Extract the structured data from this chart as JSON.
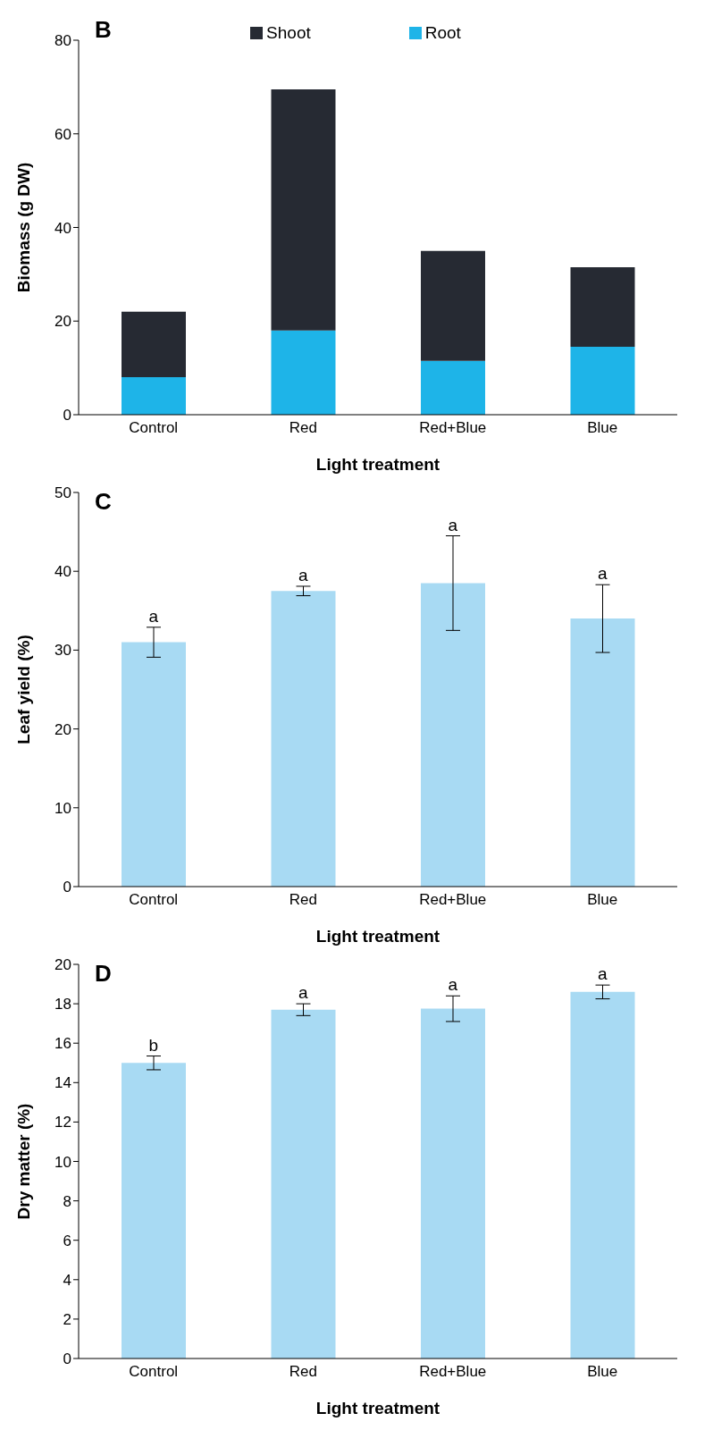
{
  "chart_data": [
    {
      "type": "bar",
      "title": "B",
      "xlabel": "Light treatment",
      "ylabel": "Biomass (g DW)",
      "categories": [
        "Control",
        "Red",
        "Red+Blue",
        "Blue"
      ],
      "stacked": true,
      "legend": "top",
      "ylim": [
        0,
        80
      ],
      "yticks": [
        0,
        20,
        40,
        60,
        80
      ],
      "series": [
        {
          "name": "Root",
          "color": "#1eb4e8",
          "values": [
            8,
            18,
            11.5,
            14.5
          ]
        },
        {
          "name": "Shoot",
          "color": "#262a33",
          "values": [
            14,
            51.5,
            23.5,
            17
          ]
        }
      ]
    },
    {
      "type": "bar",
      "title": "C",
      "xlabel": "Light treatment",
      "ylabel": "Leaf yield (%)",
      "categories": [
        "Control",
        "Red",
        "Red+Blue",
        "Blue"
      ],
      "color": "#a8daf3",
      "values": [
        31,
        37.5,
        38.5,
        34
      ],
      "errors": [
        1.9,
        0.6,
        6,
        4.3
      ],
      "ylim": [
        0,
        50
      ],
      "yticks": [
        0,
        10,
        20,
        30,
        40,
        50
      ],
      "annotations": [
        {
          "text": "a",
          "x": "Control",
          "y": 32.9
        },
        {
          "text": "a",
          "x": "Red",
          "y": 38.1
        },
        {
          "text": "a",
          "x": "Red+Blue",
          "y": 44.5
        },
        {
          "text": "a",
          "x": "Blue",
          "y": 38.3
        }
      ]
    },
    {
      "type": "bar",
      "title": "D",
      "xlabel": "Light treatment",
      "ylabel": "Dry matter (%)",
      "categories": [
        "Control",
        "Red",
        "Red+Blue",
        "Blue"
      ],
      "color": "#a8daf3",
      "values": [
        15,
        17.7,
        17.75,
        18.6
      ],
      "errors": [
        0.35,
        0.3,
        0.65,
        0.35
      ],
      "ylim": [
        0,
        20
      ],
      "yticks": [
        0,
        2,
        4,
        6,
        8,
        10,
        12,
        14,
        16,
        18,
        20
      ],
      "annotations": [
        {
          "text": "b",
          "x": "Control",
          "y": 15.35
        },
        {
          "text": "a",
          "x": "Red",
          "y": 18
        },
        {
          "text": "a",
          "x": "Red+Blue",
          "y": 18.4
        },
        {
          "text": "a",
          "x": "Blue",
          "y": 18.95
        }
      ]
    }
  ]
}
